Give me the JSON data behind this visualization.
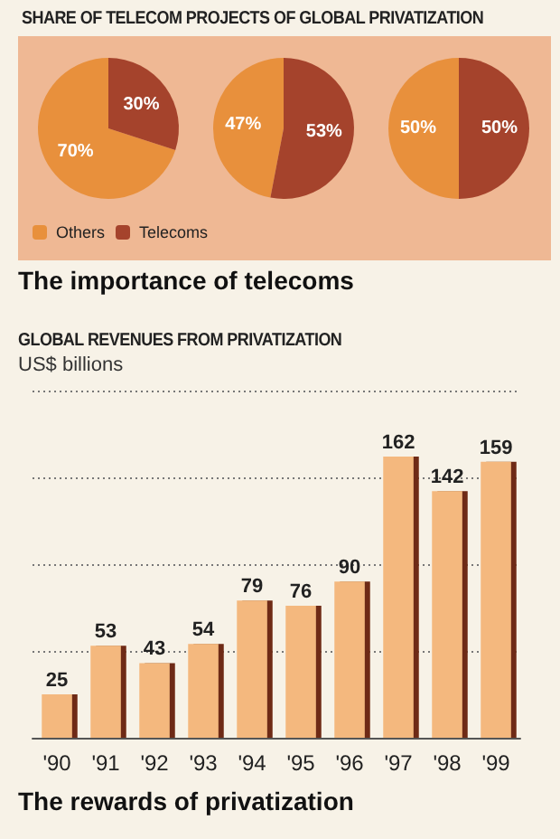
{
  "chart_data": [
    {
      "type": "pie",
      "title": "SHARE OF TELECOM PROJECTS OF GLOBAL PRIVATIZATION",
      "annotations": [
        "The importance of telecoms"
      ],
      "categories": [
        "Others",
        "Telecoms"
      ],
      "values": [
        70,
        30
      ],
      "value_labels": [
        "70%",
        "30%"
      ],
      "colors": [
        "#e8903c",
        "#a5432c"
      ],
      "legend": "bottom"
    },
    {
      "type": "pie",
      "categories": [
        null,
        null
      ],
      "values": [
        47,
        53
      ],
      "value_labels": [
        "47%",
        "53%"
      ],
      "colors": [
        "#e8903c",
        "#a5432c"
      ]
    },
    {
      "type": "pie",
      "categories": [
        null,
        null
      ],
      "values": [
        50,
        50
      ],
      "value_labels": [
        "50%",
        "50%"
      ],
      "colors": [
        "#e8903c",
        "#a5432c"
      ]
    },
    {
      "type": "bar",
      "title": "GLOBAL REVENUES FROM PRIVATIZATION",
      "ylabel": "US$ billions",
      "annotations": [
        "The rewards of privatization"
      ],
      "categories": [
        "'90",
        "'91",
        "'92",
        "'93",
        "'94",
        "'95",
        "'96",
        "'97",
        "'98",
        "'99"
      ],
      "values": [
        25,
        53,
        43,
        54,
        79,
        76,
        90,
        162,
        142,
        159
      ],
      "color": "#f4b87e",
      "ylim": [
        0,
        200
      ],
      "yticks": [
        {
          "value": 50,
          "label": null
        },
        {
          "value": 100,
          "label": null
        },
        {
          "value": 150,
          "label": null
        },
        {
          "value": 200,
          "label": null
        }
      ],
      "grid": "y",
      "tick_labels": "x",
      "data_labels": true
    }
  ]
}
